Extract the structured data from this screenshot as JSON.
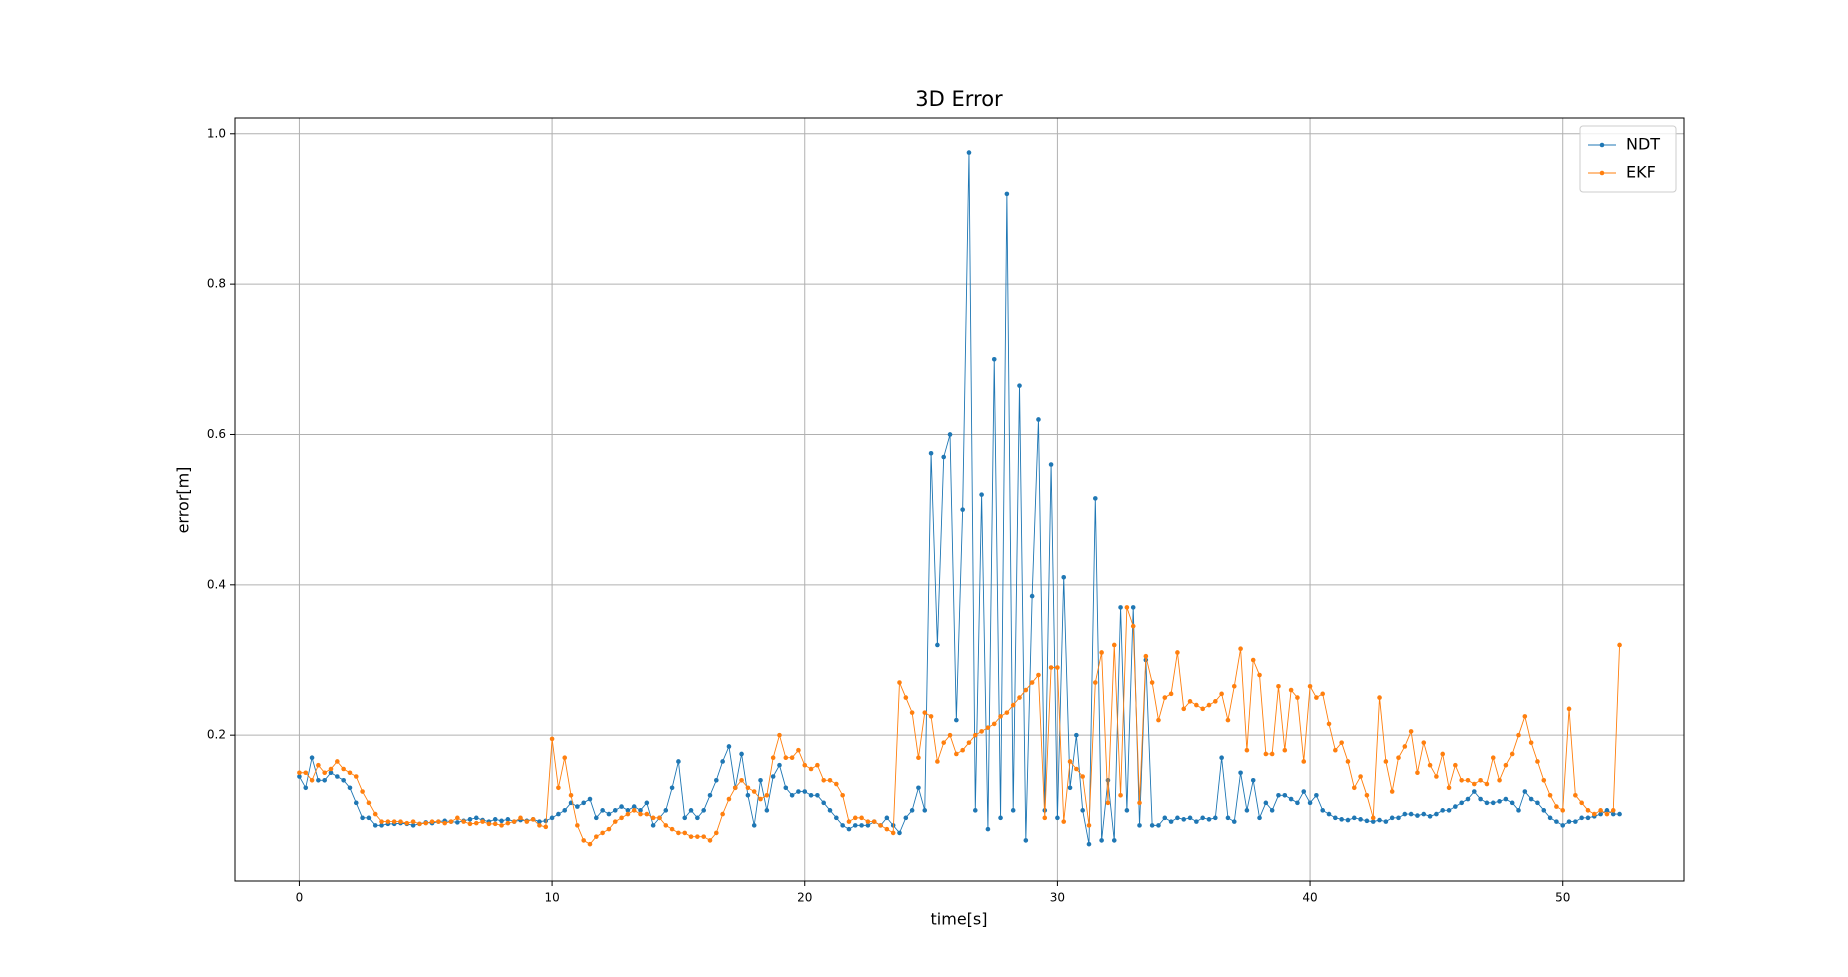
{
  "chart_data": {
    "type": "line",
    "title": "3D Error",
    "x_label": "time[s]",
    "y_label": "error[m]",
    "x": [
      0,
      0.25,
      0.5,
      0.75,
      1,
      1.25,
      1.5,
      1.75,
      2,
      2.25,
      2.5,
      2.75,
      3,
      3.25,
      3.5,
      3.75,
      4,
      4.25,
      4.5,
      4.75,
      5,
      5.25,
      5.5,
      5.75,
      6,
      6.25,
      6.5,
      6.75,
      7,
      7.25,
      7.5,
      7.75,
      8,
      8.25,
      8.5,
      8.75,
      9,
      9.25,
      9.5,
      9.75,
      10,
      10.25,
      10.5,
      10.75,
      11,
      11.25,
      11.5,
      11.75,
      12,
      12.25,
      12.5,
      12.75,
      13,
      13.25,
      13.5,
      13.75,
      14,
      14.25,
      14.5,
      14.75,
      15,
      15.25,
      15.5,
      15.75,
      16,
      16.25,
      16.5,
      16.75,
      17,
      17.25,
      17.5,
      17.75,
      18,
      18.25,
      18.5,
      18.75,
      19,
      19.25,
      19.5,
      19.75,
      20,
      20.25,
      20.5,
      20.75,
      21,
      21.25,
      21.5,
      21.75,
      22,
      22.25,
      22.5,
      22.75,
      23,
      23.25,
      23.5,
      23.75,
      24,
      24.25,
      24.5,
      24.75,
      25,
      25.25,
      25.5,
      25.75,
      26,
      26.25,
      26.5,
      26.75,
      27,
      27.25,
      27.5,
      27.75,
      28,
      28.25,
      28.5,
      28.75,
      29,
      29.25,
      29.5,
      29.75,
      30,
      30.25,
      30.5,
      30.75,
      31,
      31.25,
      31.5,
      31.75,
      32,
      32.25,
      32.5,
      32.75,
      33,
      33.25,
      33.5,
      33.75,
      34,
      34.25,
      34.5,
      34.75,
      35,
      35.25,
      35.5,
      35.75,
      36,
      36.25,
      36.5,
      36.75,
      37,
      37.25,
      37.5,
      37.75,
      38,
      38.25,
      38.5,
      38.75,
      39,
      39.25,
      39.5,
      39.75,
      40,
      40.25,
      40.5,
      40.75,
      41,
      41.25,
      41.5,
      41.75,
      42,
      42.25,
      42.5,
      42.75,
      43,
      43.25,
      43.5,
      43.75,
      44,
      44.25,
      44.5,
      44.75,
      45,
      45.25,
      45.5,
      45.75,
      46,
      46.25,
      46.5,
      46.75,
      47,
      47.25,
      47.5,
      47.75,
      48,
      48.25,
      48.5,
      48.75,
      49,
      49.25,
      49.5,
      49.75,
      50,
      50.25,
      50.5,
      50.75,
      51,
      51.25,
      51.5,
      51.75,
      52,
      52.25
    ],
    "series": [
      {
        "name": "NDT",
        "color": "#1f77b4",
        "values": [
          0.145,
          0.13,
          0.17,
          0.14,
          0.14,
          0.15,
          0.145,
          0.14,
          0.13,
          0.11,
          0.09,
          0.09,
          0.08,
          0.08,
          0.082,
          0.082,
          0.083,
          0.082,
          0.08,
          0.082,
          0.084,
          0.083,
          0.085,
          0.086,
          0.085,
          0.084,
          0.086,
          0.088,
          0.09,
          0.087,
          0.085,
          0.088,
          0.086,
          0.088,
          0.085,
          0.087,
          0.086,
          0.088,
          0.085,
          0.086,
          0.09,
          0.095,
          0.1,
          0.11,
          0.105,
          0.11,
          0.115,
          0.09,
          0.1,
          0.095,
          0.1,
          0.105,
          0.1,
          0.105,
          0.1,
          0.11,
          0.08,
          0.09,
          0.1,
          0.13,
          0.165,
          0.09,
          0.1,
          0.09,
          0.1,
          0.12,
          0.14,
          0.165,
          0.185,
          0.13,
          0.175,
          0.12,
          0.08,
          0.14,
          0.1,
          0.145,
          0.16,
          0.13,
          0.12,
          0.125,
          0.125,
          0.12,
          0.12,
          0.11,
          0.1,
          0.09,
          0.08,
          0.075,
          0.08,
          0.08,
          0.08,
          0.085,
          0.08,
          0.09,
          0.08,
          0.07,
          0.09,
          0.1,
          0.13,
          0.1,
          0.575,
          0.32,
          0.57,
          0.6,
          0.22,
          0.5,
          0.975,
          0.1,
          0.52,
          0.075,
          0.7,
          0.09,
          0.92,
          0.1,
          0.665,
          0.06,
          0.385,
          0.62,
          0.1,
          0.56,
          0.09,
          0.41,
          0.13,
          0.2,
          0.1,
          0.055,
          0.515,
          0.06,
          0.14,
          0.06,
          0.37,
          0.1,
          0.37,
          0.08,
          0.3,
          0.08,
          0.08,
          0.09,
          0.085,
          0.09,
          0.088,
          0.09,
          0.085,
          0.09,
          0.088,
          0.09,
          0.17,
          0.09,
          0.085,
          0.15,
          0.1,
          0.14,
          0.09,
          0.11,
          0.1,
          0.12,
          0.12,
          0.115,
          0.11,
          0.125,
          0.11,
          0.12,
          0.1,
          0.095,
          0.09,
          0.088,
          0.087,
          0.09,
          0.088,
          0.086,
          0.085,
          0.087,
          0.085,
          0.09,
          0.09,
          0.095,
          0.095,
          0.093,
          0.095,
          0.092,
          0.095,
          0.1,
          0.1,
          0.105,
          0.11,
          0.115,
          0.125,
          0.115,
          0.11,
          0.11,
          0.112,
          0.115,
          0.11,
          0.1,
          0.125,
          0.115,
          0.11,
          0.1,
          0.09,
          0.085,
          0.08,
          0.085,
          0.085,
          0.09,
          0.09,
          0.092,
          0.095,
          0.1,
          0.095,
          0.095
        ]
      },
      {
        "name": "EKF",
        "color": "#ff7f0e",
        "values": [
          0.15,
          0.15,
          0.14,
          0.16,
          0.15,
          0.155,
          0.165,
          0.155,
          0.15,
          0.145,
          0.125,
          0.11,
          0.095,
          0.085,
          0.085,
          0.085,
          0.085,
          0.083,
          0.085,
          0.082,
          0.083,
          0.085,
          0.085,
          0.083,
          0.085,
          0.09,
          0.085,
          0.082,
          0.083,
          0.085,
          0.082,
          0.082,
          0.08,
          0.083,
          0.085,
          0.09,
          0.085,
          0.088,
          0.08,
          0.078,
          0.195,
          0.13,
          0.17,
          0.12,
          0.08,
          0.06,
          0.055,
          0.065,
          0.07,
          0.075,
          0.085,
          0.09,
          0.095,
          0.1,
          0.095,
          0.095,
          0.09,
          0.09,
          0.08,
          0.075,
          0.07,
          0.07,
          0.065,
          0.065,
          0.065,
          0.06,
          0.07,
          0.095,
          0.115,
          0.13,
          0.14,
          0.13,
          0.125,
          0.115,
          0.12,
          0.17,
          0.2,
          0.17,
          0.17,
          0.18,
          0.16,
          0.155,
          0.16,
          0.14,
          0.14,
          0.135,
          0.12,
          0.085,
          0.09,
          0.09,
          0.085,
          0.085,
          0.08,
          0.075,
          0.07,
          0.27,
          0.25,
          0.23,
          0.17,
          0.23,
          0.225,
          0.165,
          0.19,
          0.2,
          0.175,
          0.18,
          0.19,
          0.2,
          0.205,
          0.21,
          0.215,
          0.225,
          0.23,
          0.24,
          0.25,
          0.26,
          0.27,
          0.28,
          0.09,
          0.29,
          0.29,
          0.085,
          0.165,
          0.155,
          0.145,
          0.08,
          0.27,
          0.31,
          0.11,
          0.32,
          0.12,
          0.37,
          0.345,
          0.11,
          0.305,
          0.27,
          0.22,
          0.25,
          0.255,
          0.31,
          0.235,
          0.245,
          0.24,
          0.235,
          0.24,
          0.245,
          0.255,
          0.22,
          0.265,
          0.315,
          0.18,
          0.3,
          0.28,
          0.175,
          0.175,
          0.265,
          0.18,
          0.26,
          0.25,
          0.165,
          0.265,
          0.25,
          0.255,
          0.215,
          0.18,
          0.19,
          0.165,
          0.13,
          0.145,
          0.12,
          0.09,
          0.25,
          0.165,
          0.125,
          0.17,
          0.185,
          0.205,
          0.15,
          0.19,
          0.16,
          0.145,
          0.175,
          0.13,
          0.16,
          0.14,
          0.14,
          0.135,
          0.14,
          0.135,
          0.17,
          0.14,
          0.16,
          0.175,
          0.2,
          0.225,
          0.19,
          0.165,
          0.14,
          0.12,
          0.105,
          0.1,
          0.235,
          0.12,
          0.11,
          0.1,
          0.095,
          0.1,
          0.095,
          0.1,
          0.32
        ]
      }
    ],
    "xlim": [
      -2.55,
      54.8
    ],
    "xticks": [
      0,
      10,
      20,
      30,
      40,
      50
    ],
    "ylim": [
      0.006,
      1.021
    ],
    "yticks": [
      0.2,
      0.4,
      0.6,
      0.8,
      {
        "value": 1,
        "label": "1.0"
      }
    ],
    "grid": true,
    "legend": "upper right"
  }
}
